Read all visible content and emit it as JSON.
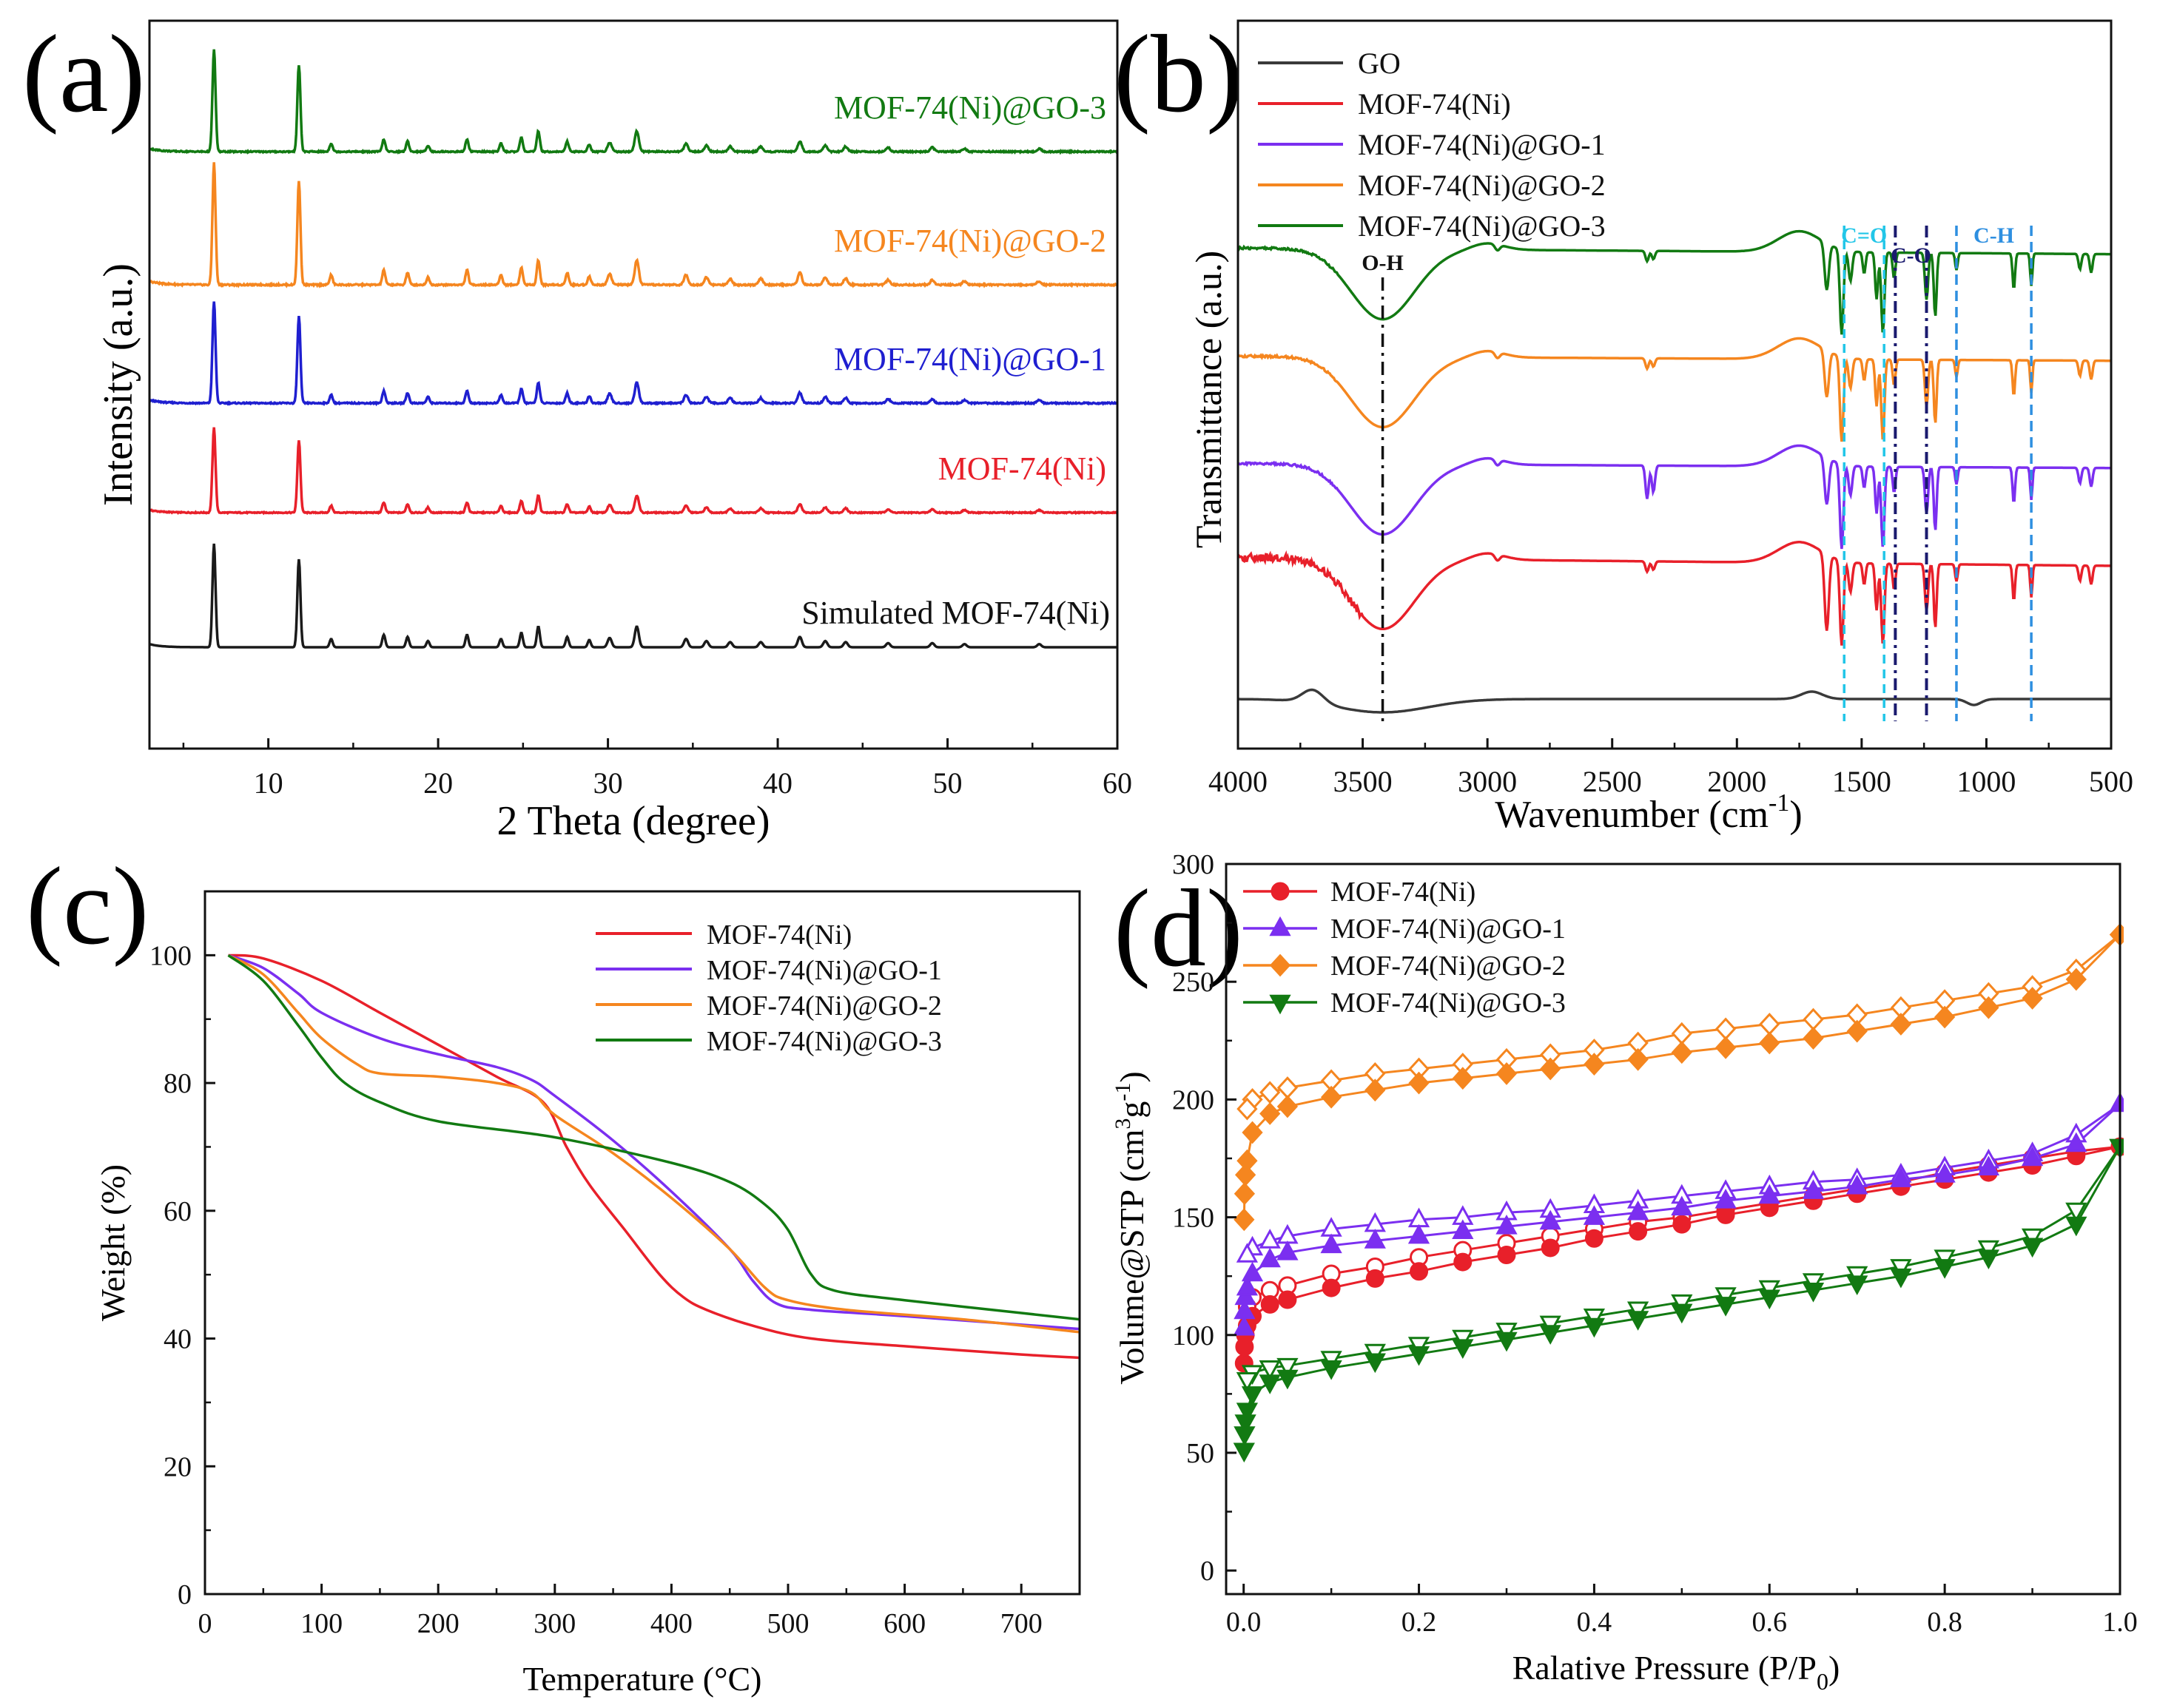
{
  "colors": {
    "black": "#1a1a1a",
    "red": "#e8202a",
    "blue": "#1f1fd0",
    "purple": "#7b2ff0",
    "orange": "#f5861f",
    "green": "#127a12",
    "gray": "#3a3a3a",
    "cyan": "#22c6e8",
    "navy": "#1a1a6e",
    "sky": "#2e8fe0"
  },
  "chart_data": [
    {
      "panel": "(a)",
      "type": "line",
      "title": "",
      "xlabel": "2 Theta (degree)",
      "ylabel": "Intensity (a.u.)",
      "xlim": [
        3,
        60
      ],
      "xticks": [
        "10",
        "20",
        "30",
        "40",
        "50",
        "60"
      ],
      "peaks": [
        {
          "x": 6.8,
          "h": 1.0
        },
        {
          "x": 11.8,
          "h": 0.85
        },
        {
          "x": 13.7,
          "h": 0.08
        },
        {
          "x": 16.8,
          "h": 0.12
        },
        {
          "x": 18.2,
          "h": 0.1
        },
        {
          "x": 19.4,
          "h": 0.06
        },
        {
          "x": 21.7,
          "h": 0.12
        },
        {
          "x": 23.7,
          "h": 0.08
        },
        {
          "x": 24.9,
          "h": 0.14
        },
        {
          "x": 25.9,
          "h": 0.2
        },
        {
          "x": 27.6,
          "h": 0.1
        },
        {
          "x": 28.9,
          "h": 0.07
        },
        {
          "x": 30.1,
          "h": 0.09
        },
        {
          "x": 31.7,
          "h": 0.2
        },
        {
          "x": 34.6,
          "h": 0.08
        },
        {
          "x": 35.8,
          "h": 0.06
        },
        {
          "x": 37.2,
          "h": 0.05
        },
        {
          "x": 39.0,
          "h": 0.05
        },
        {
          "x": 41.3,
          "h": 0.1
        },
        {
          "x": 42.8,
          "h": 0.06
        },
        {
          "x": 44.0,
          "h": 0.05
        },
        {
          "x": 46.5,
          "h": 0.04
        },
        {
          "x": 49.1,
          "h": 0.04
        },
        {
          "x": 51.0,
          "h": 0.03
        },
        {
          "x": 55.4,
          "h": 0.03
        }
      ],
      "series": [
        {
          "name": "Simulated MOF-74(Ni)",
          "color_key": "black",
          "offset": 0,
          "scale": 140
        },
        {
          "name": "MOF-74(Ni)",
          "color_key": "red",
          "offset": 182,
          "scale": 115
        },
        {
          "name": "MOF-74(Ni)@GO-1",
          "color_key": "blue",
          "offset": 330,
          "scale": 138
        },
        {
          "name": "MOF-74(Ni)@GO-2",
          "color_key": "orange",
          "offset": 490,
          "scale": 165
        },
        {
          "name": "MOF-74(Ni)@GO-3",
          "color_key": "green",
          "offset": 670,
          "scale": 138
        }
      ]
    },
    {
      "panel": "(b)",
      "type": "line",
      "title": "",
      "xlabel": "Wavenumber (cm",
      "xlabel_sup": "-1",
      "xlabel_end": ")",
      "ylabel": "Transmittance (a.u.)",
      "xlim": [
        4000,
        500
      ],
      "xticks": [
        "4000",
        "3500",
        "3000",
        "2500",
        "2000",
        "1500",
        "1000",
        "500"
      ],
      "legend": [
        "GO",
        "MOF-74(Ni)",
        "MOF-74(Ni)@GO-1",
        "MOF-74(Ni)@GO-2",
        "MOF-74(Ni)@GO-3"
      ],
      "annotations": [
        {
          "label": "O-H",
          "wavenumber": 3420,
          "color_key": "black"
        },
        {
          "label": "C=O",
          "wavenumber_range": [
            1570,
            1410
          ],
          "color_key": "cyan"
        },
        {
          "label": "C-O",
          "wavenumber_range": [
            1365,
            1240
          ],
          "color_key": "navy"
        },
        {
          "label": "C-H",
          "wavenumber_range": [
            1120,
            820
          ],
          "color_key": "sky"
        }
      ],
      "series": [
        {
          "name": "GO",
          "color_key": "gray"
        },
        {
          "name": "MOF-74(Ni)",
          "color_key": "red"
        },
        {
          "name": "MOF-74(Ni)@GO-1",
          "color_key": "purple"
        },
        {
          "name": "MOF-74(Ni)@GO-2",
          "color_key": "orange"
        },
        {
          "name": "MOF-74(Ni)@GO-3",
          "color_key": "green"
        }
      ]
    },
    {
      "panel": "(c)",
      "type": "line",
      "title": "",
      "xlabel": "Temperature (°C)",
      "ylabel": "Weight (%)",
      "xlim": [
        0,
        750
      ],
      "ylim": [
        0,
        110
      ],
      "xticks": [
        0,
        100,
        200,
        300,
        400,
        500,
        600,
        700
      ],
      "yticks": [
        0,
        20,
        40,
        60,
        80,
        100
      ],
      "legend": [
        "MOF-74(Ni)",
        "MOF-74(Ni)@GO-1",
        "MOF-74(Ni)@GO-2",
        "MOF-74(Ni)@GO-3"
      ],
      "series": [
        {
          "name": "MOF-74(Ni)",
          "color_key": "red",
          "x": [
            20,
            50,
            100,
            150,
            200,
            250,
            290,
            310,
            330,
            360,
            390,
            410,
            430,
            470,
            520,
            600,
            700,
            750
          ],
          "y": [
            100,
            99.5,
            96,
            91,
            86,
            81,
            77,
            70,
            64,
            57,
            50,
            46.5,
            44.5,
            42,
            40,
            38.8,
            37.5,
            37
          ]
        },
        {
          "name": "MOF-74(Ni)@GO-1",
          "color_key": "purple",
          "x": [
            20,
            50,
            80,
            100,
            150,
            200,
            250,
            280,
            300,
            350,
            400,
            450,
            470,
            490,
            520,
            600,
            750
          ],
          "y": [
            100,
            98,
            94,
            91,
            87,
            84.5,
            82.5,
            80.5,
            78,
            71,
            63,
            54,
            49,
            45.5,
            44.5,
            43.5,
            41.5
          ]
        },
        {
          "name": "MOF-74(Ni)@GO-2",
          "color_key": "orange",
          "x": [
            20,
            50,
            80,
            100,
            130,
            150,
            200,
            250,
            280,
            300,
            350,
            400,
            450,
            480,
            500,
            550,
            650,
            750
          ],
          "y": [
            100,
            97,
            91,
            87,
            83,
            81.5,
            81,
            80,
            78.5,
            75,
            69,
            62,
            54,
            48,
            46,
            44.5,
            43,
            41
          ]
        },
        {
          "name": "MOF-74(Ni)@GO-3",
          "color_key": "green",
          "x": [
            20,
            50,
            80,
            100,
            120,
            150,
            200,
            300,
            400,
            450,
            480,
            500,
            520,
            540,
            600,
            700,
            750
          ],
          "y": [
            100,
            96,
            89,
            84,
            80,
            77,
            74,
            71.5,
            67.5,
            64.5,
            61,
            57,
            50,
            47.5,
            46,
            44,
            43
          ]
        }
      ]
    },
    {
      "panel": "(d)",
      "type": "scatter",
      "title": "",
      "xlabel": "Ralative Pressure (P/P",
      "xlabel_sub": "0",
      "xlabel_end": ")",
      "ylabel": "Volume@STP (cm",
      "ylabel_sup1": "3",
      "ylabel_mid": "g",
      "ylabel_sup2": "-1",
      "ylabel_end": ")",
      "xlim": [
        -0.02,
        1.0
      ],
      "ylim": [
        -10,
        300
      ],
      "xticks": [
        "0.0",
        "0.2",
        "0.4",
        "0.6",
        "0.8",
        "1.0"
      ],
      "yticks": [
        0,
        50,
        100,
        150,
        200,
        250,
        300
      ],
      "legend": [
        "MOF-74(Ni)",
        "MOF-74(Ni)@GO-1",
        "MOF-74(Ni)@GO-2",
        "MOF-74(Ni)@GO-3"
      ],
      "series": [
        {
          "name": "MOF-74(Ni)",
          "color_key": "red",
          "marker": "circle",
          "ads_x": [
            0.0005,
            0.001,
            0.002,
            0.004,
            0.01,
            0.03,
            0.05,
            0.1,
            0.15,
            0.2,
            0.25,
            0.3,
            0.35,
            0.4,
            0.45,
            0.5,
            0.55,
            0.6,
            0.65,
            0.7,
            0.75,
            0.8,
            0.85,
            0.9,
            0.95,
            1.0
          ],
          "ads_y": [
            88,
            95,
            100,
            104,
            108,
            113,
            115,
            120,
            124,
            127,
            131,
            134,
            137,
            141,
            144,
            147,
            151,
            154,
            157,
            160,
            163,
            166,
            169,
            172,
            176,
            180
          ],
          "des_x": [
            1.0,
            0.95,
            0.9,
            0.85,
            0.8,
            0.75,
            0.7,
            0.65,
            0.6,
            0.55,
            0.5,
            0.45,
            0.4,
            0.35,
            0.3,
            0.25,
            0.2,
            0.15,
            0.1,
            0.05,
            0.03,
            0.01,
            0.004
          ],
          "des_y": [
            180,
            178,
            175,
            172,
            169,
            165,
            162,
            159,
            156,
            153,
            150,
            148,
            145,
            142,
            139,
            136,
            133,
            129,
            126,
            121,
            119,
            116,
            112
          ]
        },
        {
          "name": "MOF-74(Ni)@GO-1",
          "color_key": "purple",
          "marker": "triangle",
          "ads_x": [
            0.0005,
            0.001,
            0.002,
            0.004,
            0.01,
            0.03,
            0.05,
            0.1,
            0.15,
            0.2,
            0.25,
            0.3,
            0.35,
            0.4,
            0.45,
            0.5,
            0.55,
            0.6,
            0.65,
            0.7,
            0.75,
            0.8,
            0.85,
            0.9,
            0.95,
            1.0
          ],
          "ads_y": [
            103,
            110,
            116,
            120,
            126,
            132,
            135,
            138,
            140,
            142,
            144,
            146,
            148,
            150,
            152,
            154,
            157,
            159,
            161,
            163,
            166,
            168,
            171,
            175,
            181,
            198
          ],
          "des_x": [
            1.0,
            0.95,
            0.9,
            0.85,
            0.8,
            0.75,
            0.7,
            0.65,
            0.6,
            0.55,
            0.5,
            0.45,
            0.4,
            0.35,
            0.3,
            0.25,
            0.2,
            0.15,
            0.1,
            0.05,
            0.03,
            0.01,
            0.004
          ],
          "des_y": [
            198,
            185,
            177,
            174,
            171,
            168,
            166,
            165,
            163,
            161,
            159,
            157,
            155,
            153,
            152,
            150,
            149,
            147,
            145,
            142,
            140,
            137,
            134
          ]
        },
        {
          "name": "MOF-74(Ni)@GO-2",
          "color_key": "orange",
          "marker": "diamond",
          "ads_x": [
            0.0005,
            0.001,
            0.002,
            0.004,
            0.01,
            0.03,
            0.05,
            0.1,
            0.15,
            0.2,
            0.25,
            0.3,
            0.35,
            0.4,
            0.45,
            0.5,
            0.55,
            0.6,
            0.65,
            0.7,
            0.75,
            0.8,
            0.85,
            0.9,
            0.95,
            1.0
          ],
          "ads_y": [
            149,
            160,
            168,
            174,
            186,
            194,
            197,
            201,
            204,
            207,
            209,
            211,
            213,
            215,
            217,
            220,
            222,
            224,
            226,
            229,
            232,
            235,
            239,
            243,
            251,
            270
          ],
          "des_x": [
            1.0,
            0.95,
            0.9,
            0.85,
            0.8,
            0.75,
            0.7,
            0.65,
            0.6,
            0.55,
            0.5,
            0.45,
            0.4,
            0.35,
            0.3,
            0.25,
            0.2,
            0.15,
            0.1,
            0.05,
            0.03,
            0.01,
            0.004
          ],
          "des_y": [
            270,
            255,
            248,
            245,
            242,
            239,
            236,
            234,
            232,
            230,
            228,
            224,
            221,
            219,
            217,
            215,
            213,
            211,
            208,
            205,
            203,
            200,
            196
          ]
        },
        {
          "name": "MOF-74(Ni)@GO-3",
          "color_key": "green",
          "marker": "triangle-down",
          "ads_x": [
            0.0005,
            0.001,
            0.002,
            0.004,
            0.01,
            0.03,
            0.05,
            0.1,
            0.15,
            0.2,
            0.25,
            0.3,
            0.35,
            0.4,
            0.45,
            0.5,
            0.55,
            0.6,
            0.65,
            0.7,
            0.75,
            0.8,
            0.85,
            0.9,
            0.95,
            1.0
          ],
          "ads_y": [
            51,
            58,
            63,
            68,
            75,
            80,
            82,
            86,
            89,
            92,
            95,
            98,
            101,
            104,
            107,
            110,
            113,
            116,
            119,
            122,
            125,
            129,
            133,
            138,
            147,
            180
          ],
          "des_x": [
            1.0,
            0.95,
            0.9,
            0.85,
            0.8,
            0.75,
            0.7,
            0.65,
            0.6,
            0.55,
            0.5,
            0.45,
            0.4,
            0.35,
            0.3,
            0.25,
            0.2,
            0.15,
            0.1,
            0.05,
            0.03,
            0.01,
            0.004
          ],
          "des_y": [
            180,
            153,
            142,
            137,
            133,
            129,
            126,
            123,
            120,
            117,
            114,
            111,
            108,
            105,
            102,
            99,
            96,
            93,
            90,
            87,
            86,
            84,
            81
          ]
        }
      ]
    }
  ]
}
